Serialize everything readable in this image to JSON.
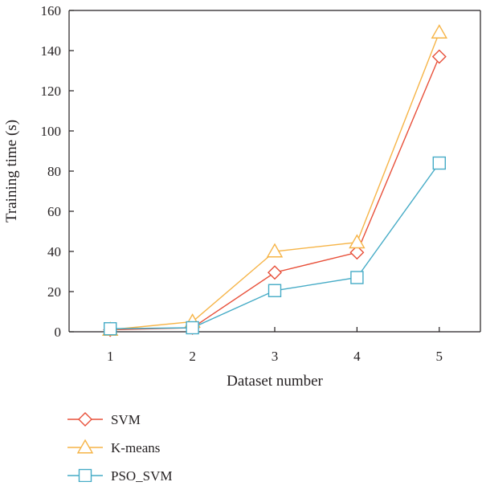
{
  "chart_data": {
    "type": "line",
    "title": "",
    "xlabel": "Dataset number",
    "ylabel": "Training time (s)",
    "x": [
      1,
      2,
      3,
      4,
      5
    ],
    "xlim": [
      0.5,
      5.5
    ],
    "ylim": [
      0,
      160
    ],
    "yticks": [
      0,
      20,
      40,
      60,
      80,
      100,
      120,
      140,
      160
    ],
    "grid": false,
    "legend": "below plot, left",
    "series": [
      {
        "name": "SVM",
        "marker": "diamond",
        "color": "#e8503a",
        "values": [
          1,
          2,
          29.5,
          39.5,
          137
        ]
      },
      {
        "name": "K-means",
        "marker": "triangle",
        "color": "#f6b447",
        "values": [
          1,
          5,
          40,
          44.5,
          149
        ]
      },
      {
        "name": "PSO_SVM",
        "marker": "square",
        "color": "#45abc6",
        "values": [
          1.5,
          2,
          20.5,
          27,
          84
        ]
      }
    ]
  }
}
